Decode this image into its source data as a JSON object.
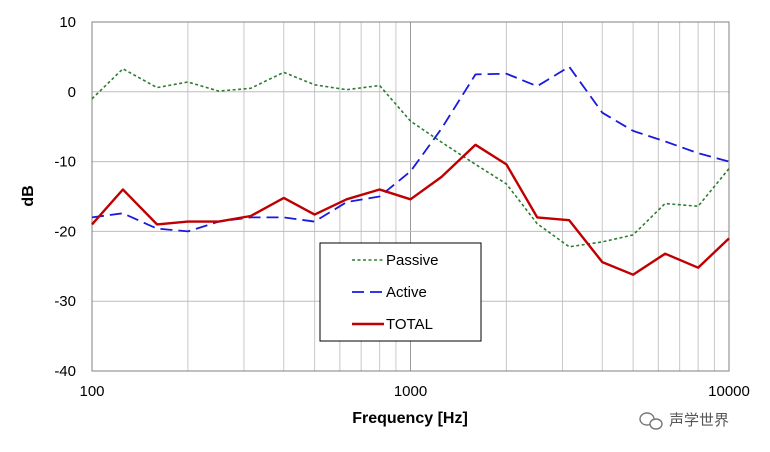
{
  "chart_data": {
    "type": "line",
    "xscale": "log",
    "xlim": [
      100,
      10000
    ],
    "ylim": [
      -40,
      10
    ],
    "xlabel": "Frequency [Hz]",
    "ylabel": "dB",
    "grid": true,
    "legend_position": "center",
    "x_tick_labels": [
      "100",
      "1000",
      "10000"
    ],
    "x_ticks": [
      100,
      1000,
      10000
    ],
    "y_ticks": [
      10,
      0,
      -10,
      -20,
      -30,
      -40
    ],
    "y_tick_labels": [
      "10",
      "0",
      "-10",
      "-20",
      "-30",
      "-40"
    ],
    "x": [
      100,
      125,
      160,
      200,
      250,
      315,
      400,
      500,
      630,
      800,
      1000,
      1250,
      1600,
      2000,
      2500,
      3150,
      4000,
      5000,
      6300,
      8000,
      10000
    ],
    "series": [
      {
        "name": "Passive",
        "color": "#2e7d32",
        "dash": "dotted",
        "values": [
          -1.0,
          3.3,
          0.6,
          1.4,
          0.1,
          0.5,
          2.8,
          1.0,
          0.3,
          0.9,
          -4.2,
          -7.2,
          -10.4,
          -13.2,
          -18.9,
          -22.2,
          -21.5,
          -20.5,
          -16.0,
          -16.4,
          -11.0
        ]
      },
      {
        "name": "Active",
        "color": "#1a1adb",
        "dash": "dashed",
        "values": [
          -18.0,
          -17.4,
          -19.6,
          -20.0,
          -18.6,
          -18.0,
          -18.0,
          -18.6,
          -15.8,
          -15.0,
          -11.4,
          -5.3,
          2.5,
          2.6,
          0.8,
          3.6,
          -3.0,
          -5.6,
          -7.1,
          -8.8,
          -10.0
        ]
      },
      {
        "name": "TOTAL",
        "color": "#c00000",
        "dash": "solid",
        "values": [
          -19.0,
          -14.0,
          -19.0,
          -18.6,
          -18.6,
          -17.8,
          -15.2,
          -17.6,
          -15.4,
          -14.0,
          -15.4,
          -12.2,
          -7.6,
          -10.4,
          -18.0,
          -18.4,
          -24.4,
          -26.2,
          -23.2,
          -25.2,
          -21.0
        ]
      }
    ]
  },
  "watermark": {
    "text": "声学世界",
    "icon": "wechat-icon"
  }
}
